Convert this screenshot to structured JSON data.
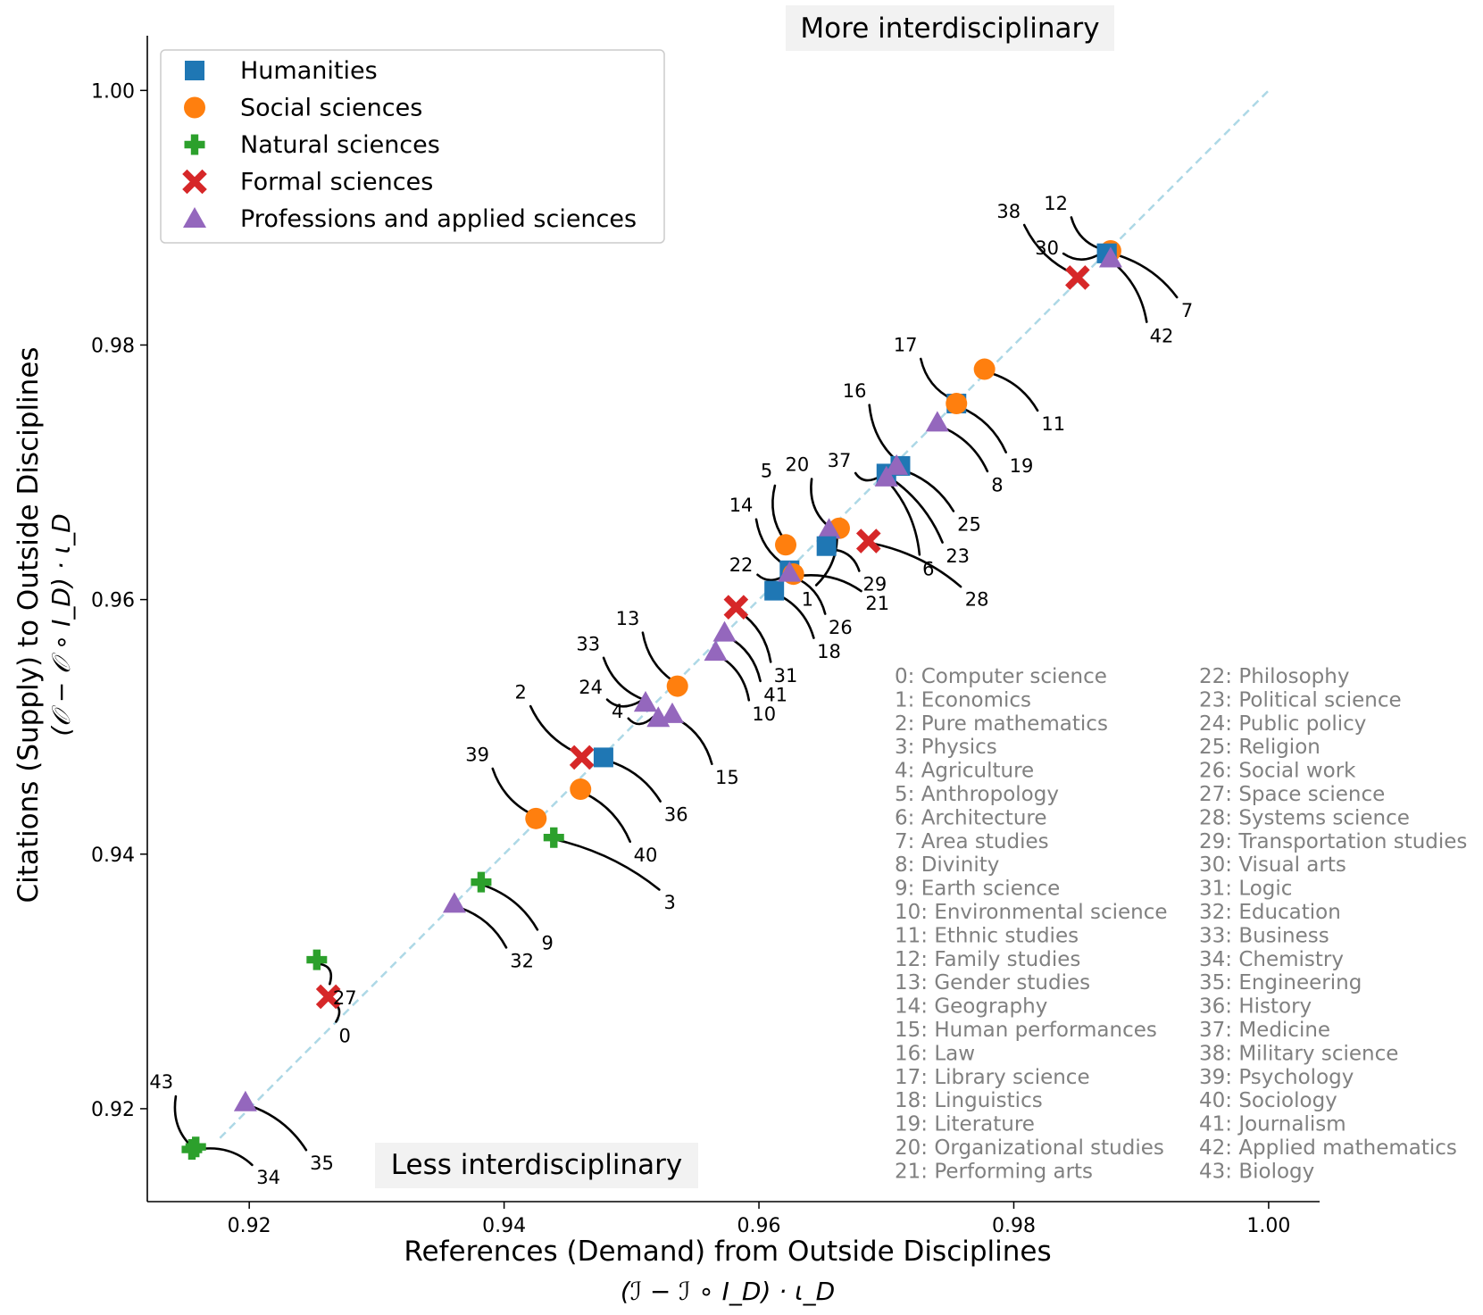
{
  "chart_data": {
    "type": "scatter",
    "title": "",
    "xlabel": "References (Demand) from Outside Disciplines",
    "xlabel_math": "(ℐ − ℐ ∘ I_D) · ι_D",
    "ylabel": "Citations (Supply) to Outside Disciplines",
    "ylabel_math": "(𝒪 − 𝒪 ∘ I_D) · ι_D",
    "xlim": [
      0.912,
      1.004
    ],
    "ylim": [
      0.9127,
      1.0043
    ],
    "xticks": [
      0.92,
      0.94,
      0.96,
      0.98,
      1.0
    ],
    "xtick_labels": [
      "0.92",
      "0.94",
      "0.96",
      "0.98",
      "1.00"
    ],
    "yticks": [
      0.92,
      0.94,
      0.96,
      0.98,
      1.0
    ],
    "ytick_labels": [
      "0.92",
      "0.94",
      "0.96",
      "0.98",
      "1.00"
    ],
    "grid": false,
    "legend_position": "top-left",
    "diagonal": {
      "from": [
        0.9177,
        0.9177
      ],
      "to": [
        1.0,
        1.0
      ],
      "style": "dashed",
      "color": "#add8e6"
    },
    "annotations": {
      "top": "More interdisciplinary",
      "bottom": "Less interdisciplinary"
    },
    "series": [
      {
        "name": "Humanities",
        "marker": "square",
        "color": "#1f77b4"
      },
      {
        "name": "Social sciences",
        "marker": "circle",
        "color": "#ff7f0e"
      },
      {
        "name": "Natural sciences",
        "marker": "plus",
        "color": "#2ca02c"
      },
      {
        "name": "Formal sciences",
        "marker": "x",
        "color": "#d62728"
      },
      {
        "name": "Professions and applied sciences",
        "marker": "triangle",
        "color": "#9467bd"
      }
    ],
    "points": [
      {
        "id": 0,
        "label": "0",
        "name": "Computer science",
        "series": 3,
        "x": 0.9262,
        "y": 0.9288,
        "lx": 0.9275,
        "ly": 0.9257
      },
      {
        "id": 1,
        "label": "1",
        "name": "Economics",
        "series": 1,
        "x": 0.9663,
        "y": 0.9656,
        "lx": 0.9638,
        "ly": 0.96
      },
      {
        "id": 2,
        "label": "2",
        "name": "Pure mathematics",
        "series": 3,
        "x": 0.9461,
        "y": 0.9476,
        "lx": 0.9413,
        "ly": 0.9527
      },
      {
        "id": 3,
        "label": "3",
        "name": "Physics",
        "series": 2,
        "x": 0.9439,
        "y": 0.9413,
        "lx": 0.953,
        "ly": 0.9362
      },
      {
        "id": 4,
        "label": "4",
        "name": "Agriculture",
        "series": 4,
        "x": 0.9521,
        "y": 0.9507,
        "lx": 0.9489,
        "ly": 0.9512
      },
      {
        "id": 5,
        "label": "5",
        "name": "Anthropology",
        "series": 1,
        "x": 0.9621,
        "y": 0.9643,
        "lx": 0.9606,
        "ly": 0.9701
      },
      {
        "id": 6,
        "label": "6",
        "name": "Architecture",
        "series": 4,
        "x": 0.97,
        "y": 0.9696,
        "lx": 0.9733,
        "ly": 0.9624
      },
      {
        "id": 7,
        "label": "7",
        "name": "Area studies",
        "series": 1,
        "x": 0.9876,
        "y": 0.9874,
        "lx": 0.9936,
        "ly": 0.9827
      },
      {
        "id": 8,
        "label": "8",
        "name": "Divinity",
        "series": 4,
        "x": 0.974,
        "y": 0.9739,
        "lx": 0.9787,
        "ly": 0.969
      },
      {
        "id": 9,
        "label": "9",
        "name": "Earth science",
        "series": 2,
        "x": 0.9382,
        "y": 0.9378,
        "lx": 0.9434,
        "ly": 0.933
      },
      {
        "id": 10,
        "label": "10",
        "name": "Environmental science",
        "series": 4,
        "x": 0.9566,
        "y": 0.9559,
        "lx": 0.9604,
        "ly": 0.951
      },
      {
        "id": 11,
        "label": "11",
        "name": "Ethnic studies",
        "series": 1,
        "x": 0.9777,
        "y": 0.9781,
        "lx": 0.9831,
        "ly": 0.9738
      },
      {
        "id": 12,
        "label": "12",
        "name": "Family studies",
        "series": 0,
        "x": 0.9873,
        "y": 0.9872,
        "lx": 0.9833,
        "ly": 0.9911
      },
      {
        "id": 13,
        "label": "13",
        "name": "Gender studies",
        "series": 1,
        "x": 0.9536,
        "y": 0.9532,
        "lx": 0.9497,
        "ly": 0.9585
      },
      {
        "id": 14,
        "label": "14",
        "name": "Geography",
        "series": 0,
        "x": 0.9624,
        "y": 0.9623,
        "lx": 0.9586,
        "ly": 0.9674
      },
      {
        "id": 15,
        "label": "15",
        "name": "Human performances",
        "series": 4,
        "x": 0.9532,
        "y": 0.951,
        "lx": 0.9575,
        "ly": 0.946
      },
      {
        "id": 16,
        "label": "16",
        "name": "Law",
        "series": 0,
        "x": 0.9711,
        "y": 0.9705,
        "lx": 0.9675,
        "ly": 0.9764
      },
      {
        "id": 17,
        "label": "17",
        "name": "Library science",
        "series": 0,
        "x": 0.9755,
        "y": 0.9754,
        "lx": 0.9715,
        "ly": 0.98
      },
      {
        "id": 18,
        "label": "18",
        "name": "Linguistics",
        "series": 0,
        "x": 0.9612,
        "y": 0.9607,
        "lx": 0.9655,
        "ly": 0.9559
      },
      {
        "id": 19,
        "label": "19",
        "name": "Literature",
        "series": 1,
        "x": 0.9755,
        "y": 0.9754,
        "lx": 0.9806,
        "ly": 0.9705
      },
      {
        "id": 20,
        "label": "20",
        "name": "Organizational studies",
        "series": 4,
        "x": 0.9655,
        "y": 0.9655,
        "lx": 0.963,
        "ly": 0.9706
      },
      {
        "id": 21,
        "label": "21",
        "name": "Performing arts",
        "series": 1,
        "x": 0.9627,
        "y": 0.962,
        "lx": 0.9693,
        "ly": 0.9597
      },
      {
        "id": 22,
        "label": "22",
        "name": "Philosophy",
        "series": 1,
        "x": 0.9627,
        "y": 0.962,
        "lx": 0.9586,
        "ly": 0.9627
      },
      {
        "id": 23,
        "label": "23",
        "name": "Political science",
        "series": 0,
        "x": 0.97,
        "y": 0.9699,
        "lx": 0.9756,
        "ly": 0.9634
      },
      {
        "id": 24,
        "label": "24",
        "name": "Public policy",
        "series": 4,
        "x": 0.9511,
        "y": 0.9519,
        "lx": 0.9468,
        "ly": 0.9531
      },
      {
        "id": 25,
        "label": "25",
        "name": "Religion",
        "series": 4,
        "x": 0.9708,
        "y": 0.9705,
        "lx": 0.9765,
        "ly": 0.9659
      },
      {
        "id": 26,
        "label": "26",
        "name": "Social work",
        "series": 4,
        "x": 0.9624,
        "y": 0.9621,
        "lx": 0.9664,
        "ly": 0.9578
      },
      {
        "id": 27,
        "label": "27",
        "name": "Space science",
        "series": 2,
        "x": 0.9253,
        "y": 0.9317,
        "lx": 0.9275,
        "ly": 0.9287
      },
      {
        "id": 28,
        "label": "28",
        "name": "Systems science",
        "series": 3,
        "x": 0.9686,
        "y": 0.9646,
        "lx": 0.9771,
        "ly": 0.96
      },
      {
        "id": 29,
        "label": "29",
        "name": "Transportation studies",
        "series": 0,
        "x": 0.9653,
        "y": 0.9642,
        "lx": 0.9691,
        "ly": 0.9612
      },
      {
        "id": 30,
        "label": "30",
        "name": "Visual arts",
        "series": 0,
        "x": 0.9873,
        "y": 0.9872,
        "lx": 0.9826,
        "ly": 0.9876
      },
      {
        "id": 31,
        "label": "31",
        "name": "Logic",
        "series": 3,
        "x": 0.9582,
        "y": 0.9594,
        "lx": 0.9621,
        "ly": 0.954
      },
      {
        "id": 32,
        "label": "32",
        "name": "Education",
        "series": 4,
        "x": 0.9361,
        "y": 0.9361,
        "lx": 0.9414,
        "ly": 0.9316
      },
      {
        "id": 33,
        "label": "33",
        "name": "Business",
        "series": 4,
        "x": 0.9511,
        "y": 0.9519,
        "lx": 0.9466,
        "ly": 0.9565
      },
      {
        "id": 34,
        "label": "34",
        "name": "Chemistry",
        "series": 2,
        "x": 0.9158,
        "y": 0.917,
        "lx": 0.9215,
        "ly": 0.9146
      },
      {
        "id": 35,
        "label": "35",
        "name": "Engineering",
        "series": 4,
        "x": 0.9197,
        "y": 0.9205,
        "lx": 0.9257,
        "ly": 0.9157
      },
      {
        "id": 36,
        "label": "36",
        "name": "History",
        "series": 0,
        "x": 0.9478,
        "y": 0.9476,
        "lx": 0.9535,
        "ly": 0.9431
      },
      {
        "id": 37,
        "label": "37",
        "name": "Medicine",
        "series": 4,
        "x": 0.97,
        "y": 0.9696,
        "lx": 0.9663,
        "ly": 0.9709
      },
      {
        "id": 38,
        "label": "38",
        "name": "Military science",
        "series": 3,
        "x": 0.985,
        "y": 0.9853,
        "lx": 0.9796,
        "ly": 0.9905
      },
      {
        "id": 39,
        "label": "39",
        "name": "Psychology",
        "series": 1,
        "x": 0.9425,
        "y": 0.9428,
        "lx": 0.9379,
        "ly": 0.9478
      },
      {
        "id": 40,
        "label": "40",
        "name": "Sociology",
        "series": 1,
        "x": 0.946,
        "y": 0.9451,
        "lx": 0.9511,
        "ly": 0.9399
      },
      {
        "id": 41,
        "label": "41",
        "name": "Journalism",
        "series": 4,
        "x": 0.9573,
        "y": 0.9574,
        "lx": 0.9613,
        "ly": 0.9525
      },
      {
        "id": 42,
        "label": "42",
        "name": "Applied mathematics",
        "series": 4,
        "x": 0.9876,
        "y": 0.9868,
        "lx": 0.9916,
        "ly": 0.9807
      },
      {
        "id": 43,
        "label": "43",
        "name": "Biology",
        "series": 2,
        "x": 0.9155,
        "y": 0.9168,
        "lx": 0.9131,
        "ly": 0.9221
      }
    ],
    "key_columns": [
      [
        "0: Computer science",
        "1: Economics",
        "2: Pure mathematics",
        "3: Physics",
        "4: Agriculture",
        "5: Anthropology",
        "6: Architecture",
        "7: Area studies",
        "8: Divinity",
        "9: Earth science",
        "10: Environmental science",
        "11: Ethnic studies",
        "12: Family studies",
        "13: Gender studies",
        "14: Geography",
        "15: Human performances",
        "16: Law",
        "17: Library science",
        "18: Linguistics",
        "19: Literature",
        "20: Organizational studies",
        "21: Performing arts"
      ],
      [
        "22: Philosophy",
        "23: Political science",
        "24: Public policy",
        "25: Religion",
        "26: Social work",
        "27: Space science",
        "28: Systems science",
        "29: Transportation studies",
        "30: Visual arts",
        "31: Logic",
        "32: Education",
        "33: Business",
        "34: Chemistry",
        "35: Engineering",
        "36: History",
        "37: Medicine",
        "38: Military science",
        "39: Psychology",
        "40: Sociology",
        "41: Journalism",
        "42: Applied mathematics",
        "43: Biology"
      ]
    ]
  }
}
